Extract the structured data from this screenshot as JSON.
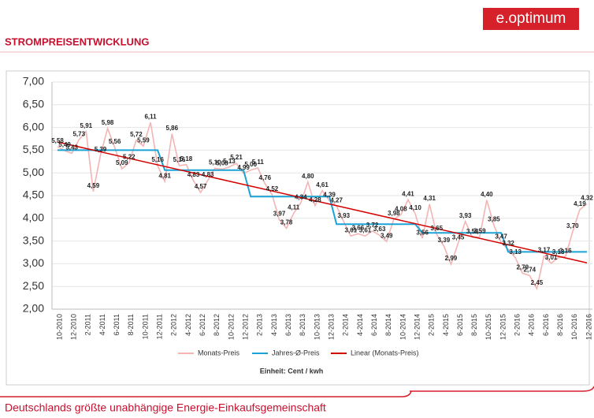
{
  "logo": "e.optimum",
  "page_title": "STROMPREISENTWICKLUNG",
  "footer": "Deutschlands größte unabhängige Energie-Einkaufsgemeinschaft",
  "chart_data": {
    "type": "line",
    "note": "Einheit: Cent / kwh",
    "categories": [
      "10-2010",
      null,
      "12-2010",
      null,
      "2-2011",
      null,
      "4-2011",
      null,
      "6-2011",
      null,
      "8-2011",
      null,
      "10-2011",
      null,
      "12-2011",
      null,
      "2-2012",
      null,
      "4-2012",
      null,
      "6-2012",
      null,
      "8-2012",
      null,
      "10-2012",
      null,
      "12-2012",
      null,
      "2-2013",
      null,
      "4-2013",
      null,
      "6-2013",
      null,
      "8-2013",
      null,
      "10-2013",
      null,
      "12-2013",
      null,
      "2-2014",
      null,
      "4-2014",
      null,
      "6-2014",
      null,
      "8-2014",
      null,
      "10-2014",
      null,
      "12-2014",
      null,
      "2-2015",
      null,
      "4-2015",
      null,
      "6-2015",
      null,
      "8-2015",
      null,
      "10-2015",
      null,
      "12-2015",
      null,
      "2-2016",
      null,
      "4-2016",
      null,
      "6-2016",
      null,
      "8-2016",
      null,
      "10-2016",
      null,
      "12-2016"
    ],
    "series": [
      {
        "name": "Monats-Preis",
        "color": "#f4b4b4",
        "values": [
          5.58,
          5.49,
          5.43,
          5.73,
          5.91,
          4.59,
          5.39,
          5.98,
          5.56,
          5.09,
          5.22,
          5.72,
          5.59,
          6.11,
          5.16,
          4.81,
          5.86,
          5.16,
          5.18,
          4.83,
          4.57,
          4.83,
          5.1,
          5.08,
          5.13,
          5.21,
          4.99,
          5.06,
          5.11,
          4.76,
          4.52,
          3.97,
          3.78,
          4.11,
          4.34,
          4.8,
          4.28,
          4.61,
          4.39,
          4.27,
          3.93,
          3.61,
          3.66,
          3.61,
          3.72,
          3.63,
          3.49,
          3.98,
          4.08,
          4.41,
          4.1,
          3.56,
          4.31,
          3.65,
          3.39,
          2.99,
          3.45,
          3.93,
          3.58,
          3.59,
          4.4,
          3.85,
          3.47,
          3.32,
          3.13,
          2.79,
          2.74,
          2.45,
          3.17,
          3.01,
          3.13,
          3.16,
          3.7,
          4.19,
          4.32
        ],
        "value_labels": [
          "5,58",
          "5,49",
          "5,43",
          "5,73",
          "5,91",
          "4,59",
          "5,39",
          "5,98",
          "5,56",
          "5,09",
          "5,22",
          "5,72",
          "5,59",
          "6,11",
          "5,16",
          "4,81",
          "5,86",
          "5,16",
          "5,18",
          "4,83",
          "4,57",
          "4,83",
          "5,10",
          "5,08",
          "5,13",
          "5,21",
          "4,99",
          "5,06",
          "5,11",
          "4,76",
          "4,52",
          "3,97",
          "3,78",
          "4,11",
          "4,34",
          "4,80",
          "4,28",
          "4,61",
          "4,39",
          "4,27",
          "3,93",
          "3,61",
          "3,66",
          "3,61",
          "3,72",
          "3,63",
          "3,49",
          "3,98",
          "4,08",
          "4,41",
          "4,10",
          "3,56",
          "4,31",
          "3,65",
          "3,39",
          "2,99",
          "3,45",
          "3,93",
          "3,58",
          "3,59",
          "4,40",
          "3,85",
          "3,47",
          "3,32",
          "3,13",
          "2,79",
          "2,74",
          "2,45",
          "3,17",
          "3,01",
          "3,13",
          "3,16",
          "3,70",
          "4,19",
          "4,32"
        ]
      },
      {
        "name": "Jahres-Ø-Preis",
        "color": "#1ba3d6",
        "values": [
          5.5,
          5.5,
          5.5,
          5.5,
          5.5,
          5.5,
          5.5,
          5.5,
          5.5,
          5.5,
          5.5,
          5.5,
          5.5,
          5.5,
          5.5,
          5.06,
          5.06,
          5.06,
          5.06,
          5.06,
          5.06,
          5.06,
          5.06,
          5.06,
          5.06,
          5.06,
          5.06,
          4.48,
          4.48,
          4.48,
          4.48,
          4.48,
          4.48,
          4.48,
          4.48,
          4.48,
          4.48,
          4.48,
          4.48,
          3.87,
          3.87,
          3.87,
          3.87,
          3.87,
          3.87,
          3.87,
          3.87,
          3.87,
          3.87,
          3.87,
          3.87,
          3.68,
          3.68,
          3.68,
          3.68,
          3.68,
          3.68,
          3.68,
          3.68,
          3.68,
          3.68,
          3.68,
          3.68,
          3.26,
          3.26,
          3.26,
          3.26,
          3.26,
          3.26,
          3.26,
          3.26,
          3.26,
          3.26,
          3.26,
          3.26
        ]
      }
    ],
    "trend": {
      "name": "Linear (Monats-Preis)",
      "color": "#d40000",
      "endpoints": [
        5.68,
        3.02
      ]
    },
    "ylim": [
      2,
      7
    ],
    "yticks": [
      {
        "value": 2,
        "label": "2,00"
      },
      {
        "value": 2.5,
        "label": "2,50"
      },
      {
        "value": 3,
        "label": "3,00"
      },
      {
        "value": 3.5,
        "label": "3,50"
      },
      {
        "value": 4,
        "label": "4,00"
      },
      {
        "value": 4.5,
        "label": "4,50"
      },
      {
        "value": 5,
        "label": "5,00"
      },
      {
        "value": 5.5,
        "label": "5,50"
      },
      {
        "value": 6,
        "label": "6,00"
      },
      {
        "value": 6.5,
        "label": "6,50"
      },
      {
        "value": 7,
        "label": "7,00"
      }
    ],
    "grid": true
  }
}
